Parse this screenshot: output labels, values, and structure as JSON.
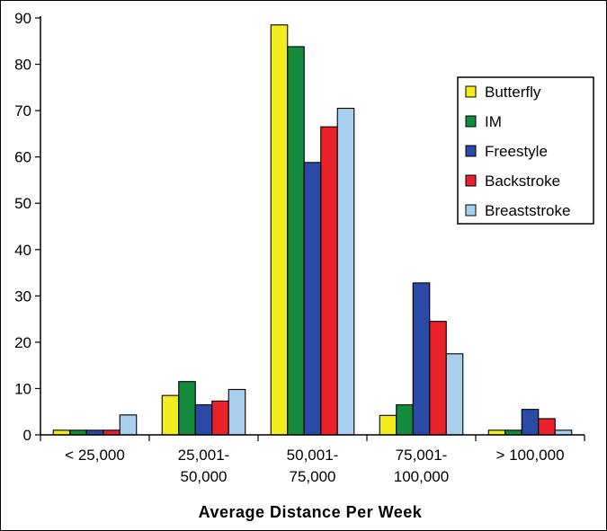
{
  "chart_data": {
    "type": "bar",
    "title": "",
    "xlabel": "Average Distance Per Week",
    "ylabel": "",
    "ylim": [
      0,
      90
    ],
    "yticks": [
      "0",
      "10",
      "20",
      "30",
      "40",
      "50",
      "60",
      "70",
      "80",
      "90"
    ],
    "categories": [
      [
        "< 25,000"
      ],
      [
        "25,001-",
        "50,000"
      ],
      [
        "50,001-",
        "75,000"
      ],
      [
        "75,001-",
        "100,000"
      ],
      [
        "> 100,000"
      ]
    ],
    "series": [
      {
        "name": "Butterfly",
        "color": "#f2ec1c",
        "values": [
          1,
          8.5,
          88.5,
          4.2,
          1
        ]
      },
      {
        "name": "IM",
        "color": "#148a3c",
        "values": [
          1,
          11.5,
          83.8,
          6.5,
          1
        ]
      },
      {
        "name": "Freestyle",
        "color": "#2b4aa6",
        "values": [
          1,
          6.5,
          58.8,
          32.8,
          5.5
        ]
      },
      {
        "name": "Backstroke",
        "color": "#e8212a",
        "values": [
          1,
          7.3,
          66.5,
          24.5,
          3.5
        ]
      },
      {
        "name": "Breaststroke",
        "color": "#a9cfef",
        "values": [
          4.3,
          9.8,
          70.5,
          17.5,
          1
        ]
      }
    ],
    "legend_position": "right"
  }
}
